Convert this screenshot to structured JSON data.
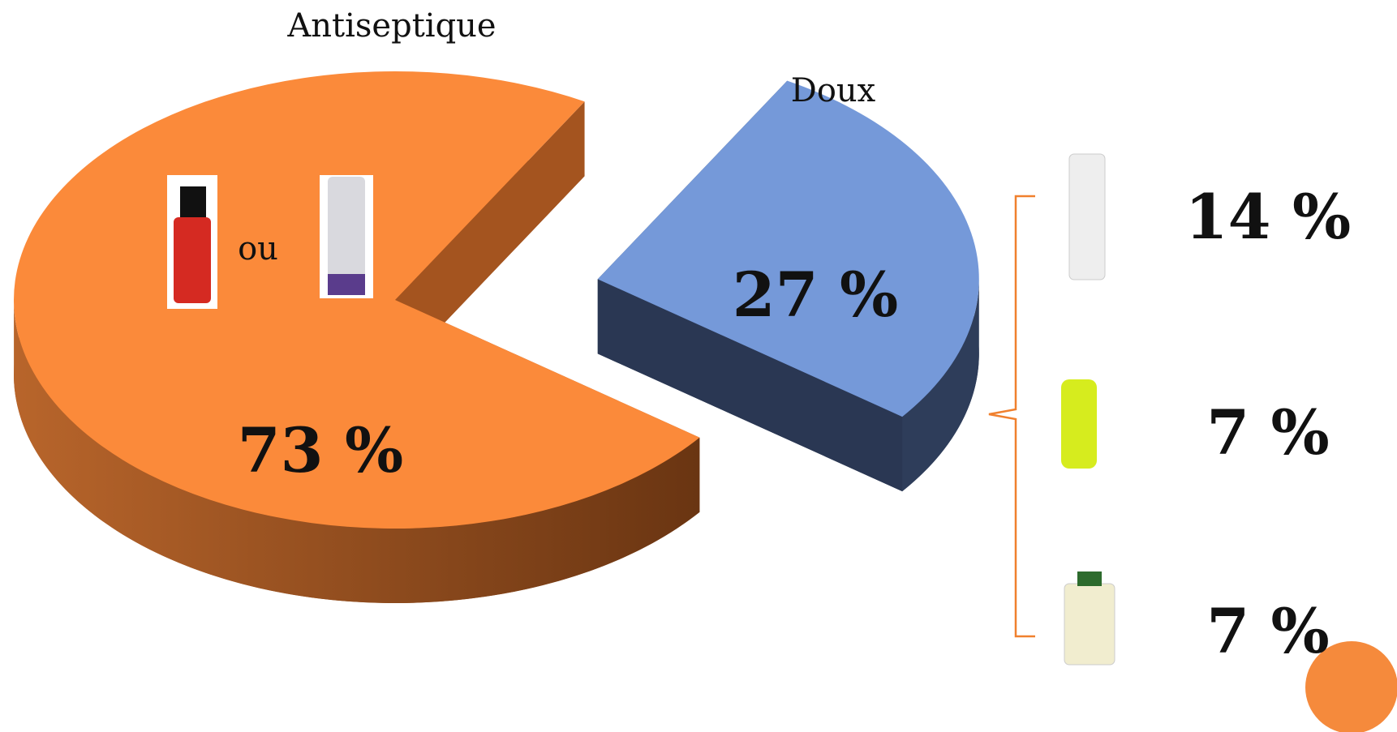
{
  "chart_data": {
    "type": "pie",
    "categories": [
      "Antiseptique",
      "Doux"
    ],
    "values": [
      73,
      27
    ],
    "value_labels": [
      "73 %",
      "27 %"
    ],
    "colors": [
      "#fb8a3a",
      "#7599d9"
    ],
    "annotation": "ou",
    "breakdown": {
      "values": [
        14,
        7,
        7
      ],
      "value_labels": [
        "14 %",
        "7 %",
        "7 %"
      ]
    }
  }
}
